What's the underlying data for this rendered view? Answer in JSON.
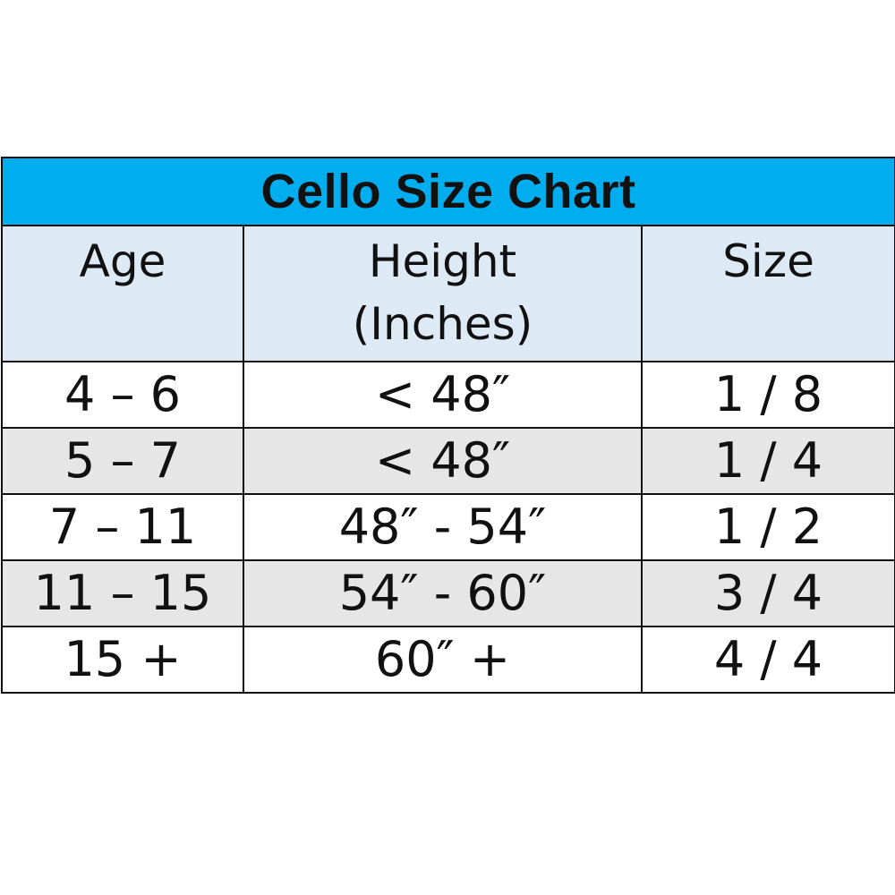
{
  "chart_data": {
    "type": "table",
    "title": "Cello Size Chart",
    "columns": [
      {
        "line1": "Age",
        "line2": ""
      },
      {
        "line1": "Height",
        "line2": "(Inches)"
      },
      {
        "line1": "Size",
        "line2": ""
      }
    ],
    "rows": [
      [
        "4 – 6",
        "< 48″",
        "1 / 8"
      ],
      [
        "5 – 7",
        "< 48″",
        "1 / 4"
      ],
      [
        "7 – 11",
        "48″ - 54″",
        "1 / 2"
      ],
      [
        "11 – 15",
        "54″ - 60″",
        "3 / 4"
      ],
      [
        "15 +",
        "60″ +",
        "4 / 4"
      ]
    ]
  },
  "colors": {
    "title_bg": "#00aeef",
    "header_bg": "#dde9f5",
    "row_alt_bg": "#e6e6e6",
    "row_bg": "#ffffff",
    "border": "#111111",
    "text": "#111111"
  }
}
